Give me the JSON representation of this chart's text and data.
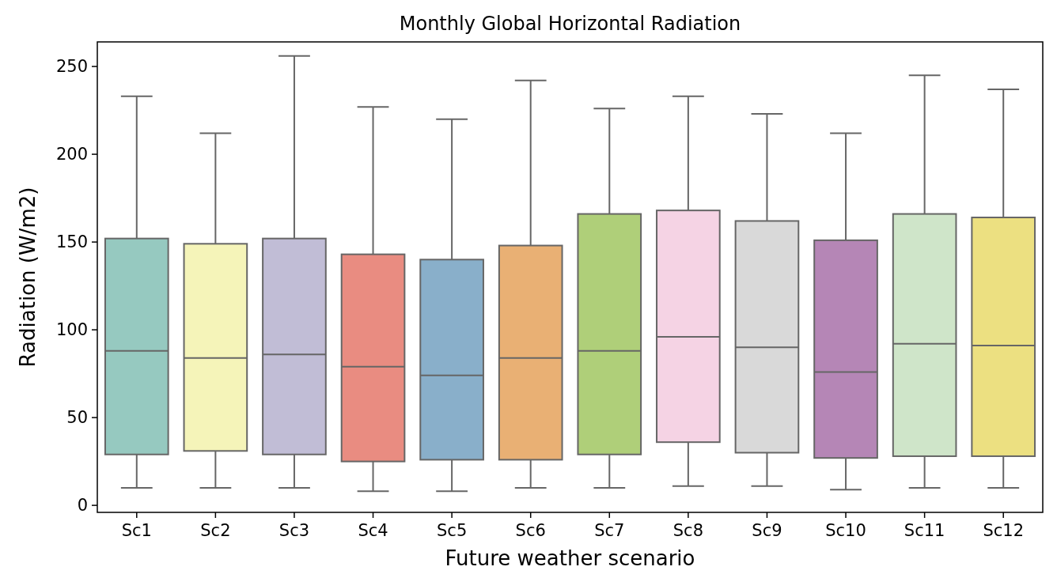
{
  "chart_data": {
    "type": "box",
    "title": "Monthly Global Horizontal Radiation",
    "xlabel": "Future weather scenario",
    "ylabel": "Radiation (W/m2)",
    "categories": [
      "Sc1",
      "Sc2",
      "Sc3",
      "Sc4",
      "Sc5",
      "Sc6",
      "Sc7",
      "Sc8",
      "Sc9",
      "Sc10",
      "Sc11",
      "Sc12"
    ],
    "colors": [
      "#96c9c0",
      "#f5f4b9",
      "#c1bdd6",
      "#e98c81",
      "#89afca",
      "#e9b074",
      "#afcf79",
      "#f5d3e4",
      "#d9d9d9",
      "#b586b6",
      "#cfe5c9",
      "#ece081"
    ],
    "boxes": [
      {
        "low": 10,
        "q1": 29,
        "median": 88,
        "q3": 152,
        "high": 233
      },
      {
        "low": 10,
        "q1": 31,
        "median": 84,
        "q3": 149,
        "high": 212
      },
      {
        "low": 10,
        "q1": 29,
        "median": 86,
        "q3": 152,
        "high": 256
      },
      {
        "low": 8,
        "q1": 25,
        "median": 79,
        "q3": 143,
        "high": 227
      },
      {
        "low": 8,
        "q1": 26,
        "median": 74,
        "q3": 140,
        "high": 220
      },
      {
        "low": 10,
        "q1": 26,
        "median": 84,
        "q3": 148,
        "high": 242
      },
      {
        "low": 10,
        "q1": 29,
        "median": 88,
        "q3": 166,
        "high": 226
      },
      {
        "low": 11,
        "q1": 36,
        "median": 96,
        "q3": 168,
        "high": 233
      },
      {
        "low": 11,
        "q1": 30,
        "median": 90,
        "q3": 162,
        "high": 223
      },
      {
        "low": 9,
        "q1": 27,
        "median": 76,
        "q3": 151,
        "high": 212
      },
      {
        "low": 10,
        "q1": 28,
        "median": 92,
        "q3": 166,
        "high": 245
      },
      {
        "low": 10,
        "q1": 28,
        "median": 91,
        "q3": 164,
        "high": 237
      }
    ],
    "ylim": [
      -4,
      264
    ],
    "yticks": [
      0,
      50,
      100,
      150,
      200,
      250
    ],
    "grid": false
  }
}
